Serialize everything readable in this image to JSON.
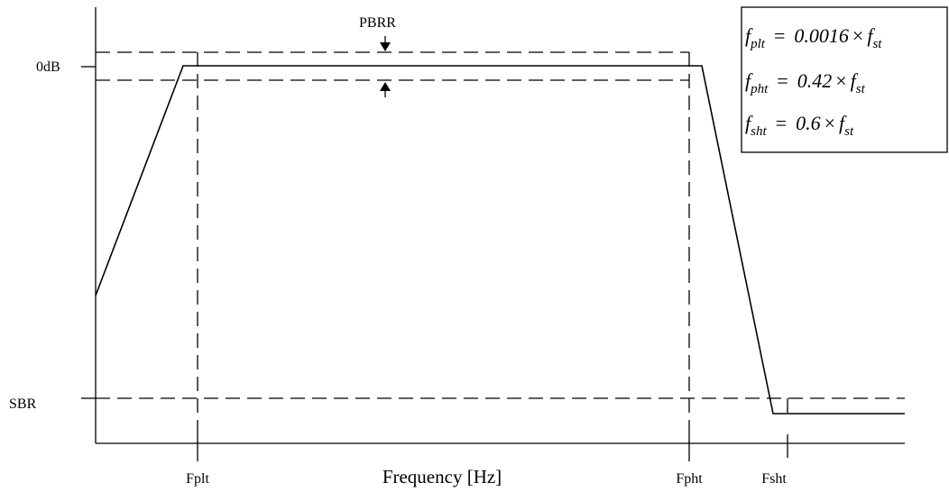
{
  "labels": {
    "zero_db": "0dB",
    "sbr": "SBR",
    "pbrr": "PBRR",
    "x_axis": "Frequency [Hz]",
    "fplt": "Fplt",
    "fpht": "Fpht",
    "fsht": "Fsht"
  },
  "formulas": [
    {
      "f": "f",
      "sub": "plt",
      "eq": "=",
      "coef": "0.0016",
      "times": "×",
      "f2": "f",
      "sub2": "st"
    },
    {
      "f": "f",
      "sub": "pht",
      "eq": "=",
      "coef": "0.42",
      "times": "×",
      "f2": "f",
      "sub2": "st"
    },
    {
      "f": "f",
      "sub": "sht",
      "eq": "=",
      "coef": "0.6",
      "times": "×",
      "f2": "f",
      "sub2": "st"
    }
  ]
}
